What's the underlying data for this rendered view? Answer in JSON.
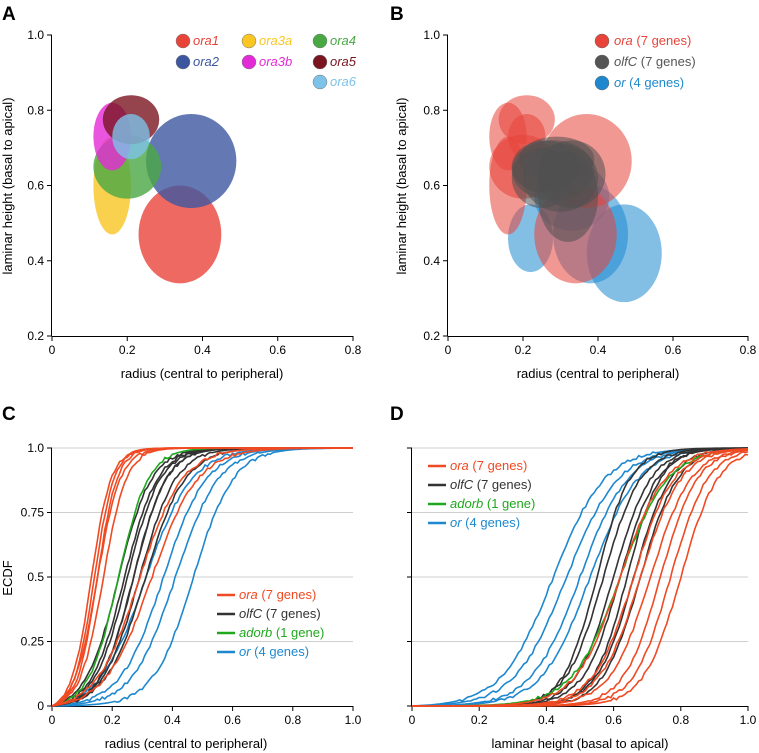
{
  "panels": {
    "A": {
      "letter": "A",
      "xlabel": "radius (central to peripheral)",
      "ylabel": "laminar height (basal to apical)"
    },
    "B": {
      "letter": "B",
      "xlabel": "radius (central to peripheral)",
      "ylabel": "laminar height (basal to apical)"
    },
    "C": {
      "letter": "C",
      "xlabel": "radius (central to peripheral)",
      "ylabel": "ECDF"
    },
    "D": {
      "letter": "D",
      "xlabel": "laminar height (basal to apical)",
      "ylabel": ""
    }
  },
  "chart_data": [
    {
      "id": "A",
      "type": "scatter",
      "subtype": "ellipse",
      "xlim": [
        0,
        0.8
      ],
      "ylim": [
        0.2,
        1.0
      ],
      "xticks": [
        "0",
        "0.2",
        "0.4",
        "0.6",
        "0.8"
      ],
      "yticks": [
        "0.2",
        "0.4",
        "0.6",
        "0.8",
        "1.0"
      ],
      "legend_position": "top-right",
      "series": [
        {
          "name": "ora1",
          "color": "#e8443a",
          "cx": 0.34,
          "cy": 0.47,
          "rx": 0.11,
          "ry": 0.13
        },
        {
          "name": "ora2",
          "color": "#3d56a0",
          "cx": 0.37,
          "cy": 0.665,
          "rx": 0.12,
          "ry": 0.125
        },
        {
          "name": "ora3a",
          "color": "#f9c623",
          "cx": 0.16,
          "cy": 0.6,
          "rx": 0.05,
          "ry": 0.13
        },
        {
          "name": "ora3b",
          "color": "#e32ad7",
          "cx": 0.16,
          "cy": 0.73,
          "rx": 0.05,
          "ry": 0.09
        },
        {
          "name": "ora4",
          "color": "#4aa844",
          "cx": 0.2,
          "cy": 0.65,
          "rx": 0.09,
          "ry": 0.085
        },
        {
          "name": "ora5",
          "color": "#7a1520",
          "cx": 0.21,
          "cy": 0.775,
          "rx": 0.075,
          "ry": 0.065
        },
        {
          "name": "ora6",
          "color": "#7dc2e8",
          "cx": 0.21,
          "cy": 0.73,
          "rx": 0.05,
          "ry": 0.06
        }
      ]
    },
    {
      "id": "B",
      "type": "scatter",
      "subtype": "ellipse",
      "xlim": [
        0,
        0.8
      ],
      "ylim": [
        0.2,
        1.0
      ],
      "xticks": [
        "0",
        "0.2",
        "0.4",
        "0.6",
        "0.8"
      ],
      "yticks": [
        "0.2",
        "0.4",
        "0.6",
        "0.8",
        "1.0"
      ],
      "legend_position": "top-right",
      "legend": [
        {
          "italic": "ora",
          "rest": " (7 genes)",
          "color": "#e8443a"
        },
        {
          "italic": "olfC",
          "rest": " (7 genes)",
          "color": "#555555"
        },
        {
          "italic": "or",
          "rest": " (4 genes)",
          "color": "#1e88cf"
        }
      ],
      "groups": [
        {
          "name": "ora",
          "color": "#e8443a",
          "ellipses": [
            [
              0.34,
              0.47,
              0.11,
              0.13
            ],
            [
              0.37,
              0.665,
              0.12,
              0.125
            ],
            [
              0.16,
              0.6,
              0.05,
              0.13
            ],
            [
              0.16,
              0.73,
              0.05,
              0.09
            ],
            [
              0.2,
              0.65,
              0.09,
              0.085
            ],
            [
              0.21,
              0.775,
              0.075,
              0.065
            ],
            [
              0.21,
              0.73,
              0.05,
              0.06
            ]
          ]
        },
        {
          "name": "olfC",
          "color": "#505050",
          "ellipses": [
            [
              0.28,
              0.64,
              0.11,
              0.08
            ],
            [
              0.3,
              0.62,
              0.1,
              0.09
            ],
            [
              0.26,
              0.65,
              0.09,
              0.07
            ],
            [
              0.32,
              0.57,
              0.08,
              0.12
            ],
            [
              0.29,
              0.67,
              0.1,
              0.06
            ],
            [
              0.25,
              0.62,
              0.08,
              0.08
            ],
            [
              0.33,
              0.63,
              0.09,
              0.09
            ]
          ]
        },
        {
          "name": "or",
          "color": "#1e88cf",
          "ellipses": [
            [
              0.22,
              0.46,
              0.06,
              0.09
            ],
            [
              0.47,
              0.42,
              0.1,
              0.13
            ],
            [
              0.38,
              0.47,
              0.1,
              0.13
            ],
            [
              0.33,
              0.57,
              0.1,
              0.09
            ]
          ]
        }
      ]
    },
    {
      "id": "C",
      "type": "line",
      "subtype": "ecdf",
      "xlim": [
        0,
        1.0
      ],
      "ylim": [
        0,
        1.0
      ],
      "xticks": [
        "0",
        "0.2",
        "0.4",
        "0.6",
        "0.8",
        "1.0"
      ],
      "yticks": [
        "0",
        "0.25",
        "0.5",
        "0.75",
        "1.0"
      ],
      "grid": "horizontal",
      "legend_position": "bottom-right",
      "legend": [
        {
          "italic": "ora",
          "rest": " (7 genes)",
          "color": "#ef4a23"
        },
        {
          "italic": "olfC",
          "rest": " (7 genes)",
          "color": "#333333"
        },
        {
          "italic": "adorb",
          "rest": " (1 gene)",
          "color": "#1ea81e"
        },
        {
          "italic": "or",
          "rest": " (4 genes)",
          "color": "#1e88cf"
        }
      ],
      "series": [
        {
          "name": "ora",
          "color": "#ef4a23",
          "medians": [
            0.13,
            0.14,
            0.15,
            0.15,
            0.17,
            0.29,
            0.33
          ],
          "spread": [
            0.06,
            0.06,
            0.06,
            0.07,
            0.07,
            0.13,
            0.14
          ]
        },
        {
          "name": "olfC",
          "color": "#333333",
          "medians": [
            0.22,
            0.24,
            0.25,
            0.27,
            0.27,
            0.29,
            0.31
          ],
          "spread": [
            0.1,
            0.1,
            0.1,
            0.1,
            0.1,
            0.11,
            0.12
          ]
        },
        {
          "name": "adorb",
          "color": "#1ea81e",
          "medians": [
            0.22
          ],
          "spread": [
            0.09
          ]
        },
        {
          "name": "or",
          "color": "#1e88cf",
          "medians": [
            0.31,
            0.37,
            0.41,
            0.47
          ],
          "spread": [
            0.14,
            0.13,
            0.13,
            0.12
          ]
        }
      ]
    },
    {
      "id": "D",
      "type": "line",
      "subtype": "ecdf",
      "xlim": [
        0,
        1.0
      ],
      "ylim": [
        0,
        1.0
      ],
      "xticks": [
        "0",
        "0.2",
        "0.4",
        "0.6",
        "0.8",
        "1.0"
      ],
      "yticks": [
        "0",
        "0.25",
        "0.5",
        "0.75",
        "1.0"
      ],
      "grid": "horizontal",
      "legend_position": "top-left",
      "legend": [
        {
          "italic": "ora",
          "rest": " (7 genes)",
          "color": "#ef4a23"
        },
        {
          "italic": "olfC",
          "rest": " (7 genes)",
          "color": "#333333"
        },
        {
          "italic": "adorb",
          "rest": " (1 gene)",
          "color": "#1ea81e"
        },
        {
          "italic": "or",
          "rest": " (4 genes)",
          "color": "#1e88cf"
        }
      ],
      "series": [
        {
          "name": "ora",
          "color": "#ef4a23",
          "medians": [
            0.62,
            0.66,
            0.68,
            0.71,
            0.74,
            0.77,
            0.8
          ],
          "spread": [
            0.12,
            0.11,
            0.11,
            0.11,
            0.1,
            0.1,
            0.1
          ]
        },
        {
          "name": "olfC",
          "color": "#333333",
          "medians": [
            0.55,
            0.57,
            0.6,
            0.62,
            0.64,
            0.66,
            0.68
          ],
          "spread": [
            0.09,
            0.1,
            0.1,
            0.1,
            0.09,
            0.1,
            0.1
          ]
        },
        {
          "name": "adorb",
          "color": "#1ea81e",
          "medians": [
            0.62
          ],
          "spread": [
            0.13
          ]
        },
        {
          "name": "or",
          "color": "#1e88cf",
          "medians": [
            0.42,
            0.46,
            0.5,
            0.53
          ],
          "spread": [
            0.14,
            0.14,
            0.13,
            0.13
          ]
        }
      ]
    }
  ]
}
